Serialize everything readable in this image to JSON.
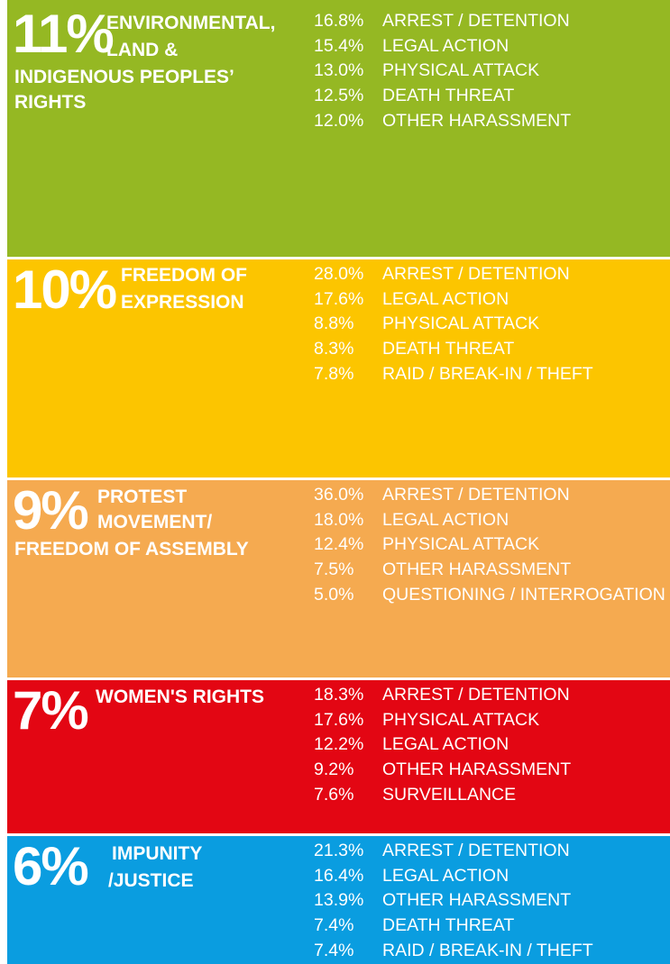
{
  "sections": [
    {
      "percent": "11%",
      "title_lines": [
        "ENVIRONMENTAL,",
        "LAND &",
        "INDIGENOUS PEOPLES’",
        "RIGHTS"
      ],
      "items": [
        {
          "share": "16.8%",
          "label": "ARREST / DETENTION"
        },
        {
          "share": "15.4%",
          "label": "LEGAL ACTION"
        },
        {
          "share": "13.0%",
          "label": "PHYSICAL ATTACK"
        },
        {
          "share": "12.5%",
          "label": "DEATH THREAT"
        },
        {
          "share": "12.0%",
          "label": "OTHER HARASSMENT"
        }
      ]
    },
    {
      "percent": "10%",
      "title_lines": [
        "FREEDOM OF",
        "EXPRESSION"
      ],
      "items": [
        {
          "share": "28.0%",
          "label": "ARREST / DETENTION"
        },
        {
          "share": "17.6%",
          "label": "LEGAL ACTION"
        },
        {
          "share": "8.8%",
          "label": "PHYSICAL ATTACK"
        },
        {
          "share": "8.3%",
          "label": "DEATH THREAT"
        },
        {
          "share": "7.8%",
          "label": "RAID / BREAK-IN  / THEFT"
        }
      ]
    },
    {
      "percent": "9%",
      "title_lines": [
        "PROTEST",
        "MOVEMENT/",
        "FREEDOM OF ASSEMBLY"
      ],
      "items": [
        {
          "share": "36.0%",
          "label": "ARREST / DETENTION"
        },
        {
          "share": "18.0%",
          "label": "LEGAL ACTION"
        },
        {
          "share": "12.4%",
          "label": "PHYSICAL ATTACK"
        },
        {
          "share": "7.5%",
          "label": "OTHER HARASSMENT"
        },
        {
          "share": "5.0%",
          "label": "QUESTIONING / INTERROGATION"
        }
      ]
    },
    {
      "percent": "7%",
      "title_lines": [
        "WOMEN'S RIGHTS"
      ],
      "items": [
        {
          "share": "18.3%",
          "label": "ARREST / DETENTION"
        },
        {
          "share": "17.6%",
          "label": "PHYSICAL ATTACK"
        },
        {
          "share": "12.2%",
          "label": "LEGAL ACTION"
        },
        {
          "share": "9.2%",
          "label": "OTHER HARASSMENT"
        },
        {
          "share": "7.6%",
          "label": "SURVEILLANCE"
        }
      ]
    },
    {
      "percent": "6%",
      "title_lines": [
        "IMPUNITY",
        "/JUSTICE"
      ],
      "items": [
        {
          "share": "21.3%",
          "label": "ARREST / DETENTION"
        },
        {
          "share": "16.4%",
          "label": "LEGAL ACTION"
        },
        {
          "share": "13.9%",
          "label": "OTHER HARASSMENT"
        },
        {
          "share": "7.4%",
          "label": "DEATH THREAT"
        },
        {
          "share": "7.4%",
          "label": "RAID / BREAK-IN / THEFT"
        }
      ]
    }
  ]
}
